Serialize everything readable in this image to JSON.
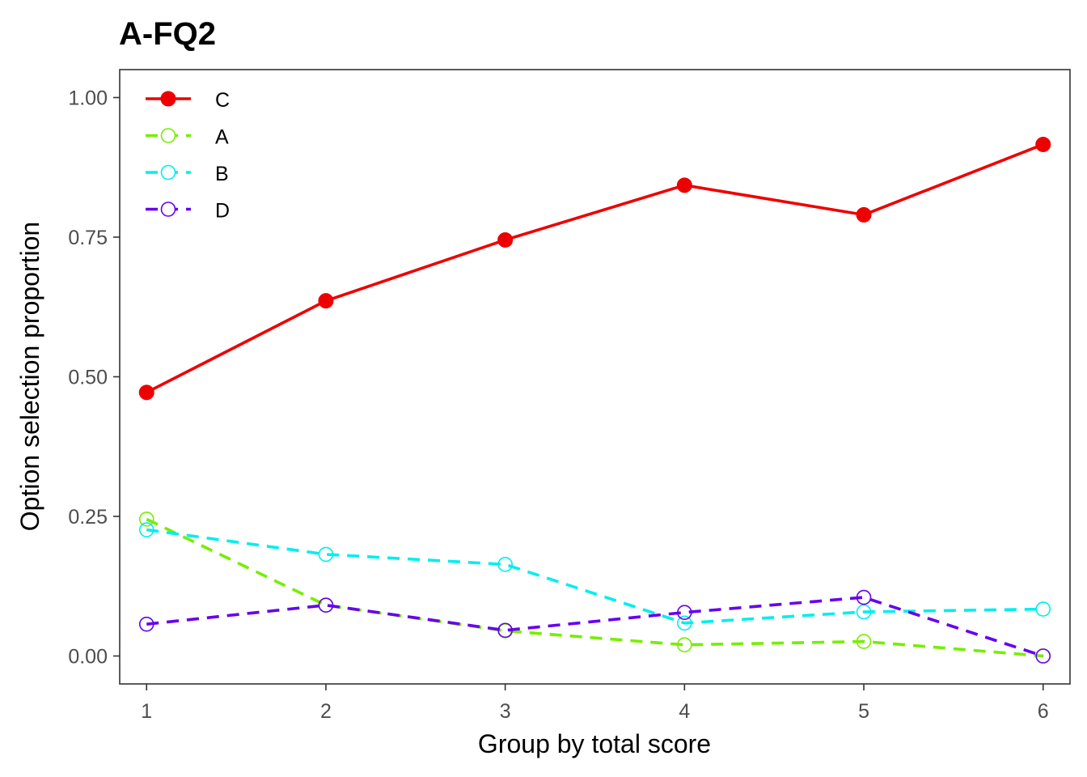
{
  "chart_data": {
    "type": "line",
    "title": "A-FQ2",
    "xlabel": "Group by total score",
    "ylabel": "Option selection proportion",
    "x": [
      1,
      2,
      3,
      4,
      5,
      6
    ],
    "x_ticks": [
      "1",
      "2",
      "3",
      "4",
      "5",
      "6"
    ],
    "y_ticks": [
      "0.00",
      "0.25",
      "0.50",
      "0.75",
      "1.00"
    ],
    "xlim": [
      0.85,
      6.15
    ],
    "ylim": [
      -0.05,
      1.05
    ],
    "grid": false,
    "legend_position": "top-left",
    "series": [
      {
        "name": "C",
        "color": "#ee0000",
        "style": "solid",
        "marker": "filled-circle",
        "values": [
          0.472,
          0.636,
          0.745,
          0.843,
          0.79,
          0.916
        ]
      },
      {
        "name": "A",
        "color": "#76ee00",
        "style": "dashed",
        "marker": "open-circle",
        "values": [
          0.245,
          0.091,
          0.045,
          0.02,
          0.026,
          0.0
        ]
      },
      {
        "name": "B",
        "color": "#00eeee",
        "style": "dashed",
        "marker": "open-circle",
        "values": [
          0.226,
          0.182,
          0.164,
          0.059,
          0.079,
          0.084
        ]
      },
      {
        "name": "D",
        "color": "#6600ee",
        "style": "dashed",
        "marker": "open-circle",
        "values": [
          0.057,
          0.091,
          0.046,
          0.078,
          0.105,
          0.0
        ]
      }
    ]
  }
}
